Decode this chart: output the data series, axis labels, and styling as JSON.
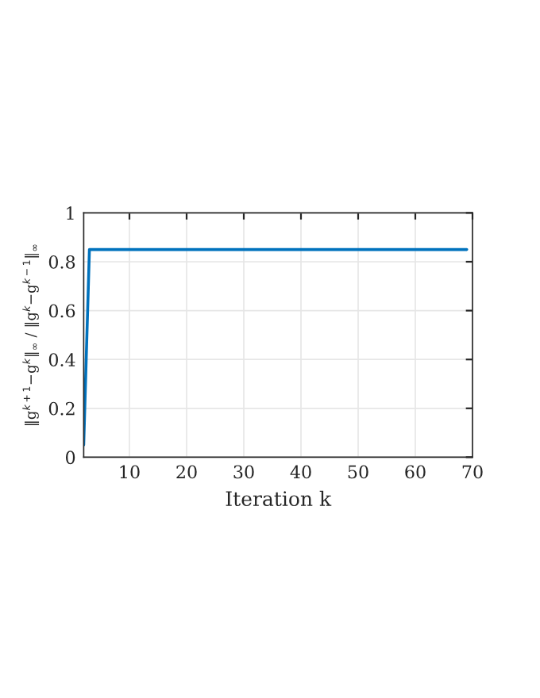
{
  "chart_data": {
    "type": "line",
    "xlabel": "Iteration k",
    "ylabel": "‖g$^{k+1}$−g$^{k}$‖$_{∞}$ / ‖g$^{k}$−g$^{k−1}$‖$_{∞}$",
    "series": [
      {
        "color": "#0072bd",
        "x": [
          2,
          3,
          10,
          20,
          30,
          40,
          50,
          60,
          69
        ],
        "values": [
          0.05,
          0.85,
          0.85,
          0.85,
          0.85,
          0.85,
          0.85,
          0.85,
          0.85
        ]
      }
    ],
    "xlim": [
      2,
      70
    ],
    "ylim": [
      0,
      1
    ],
    "xticks": [
      10,
      20,
      30,
      40,
      50,
      60,
      70
    ],
    "yticks": [
      0,
      0.2,
      0.4,
      0.6,
      0.8,
      1
    ],
    "grid": true,
    "line_style": "solid",
    "marker": "none"
  }
}
